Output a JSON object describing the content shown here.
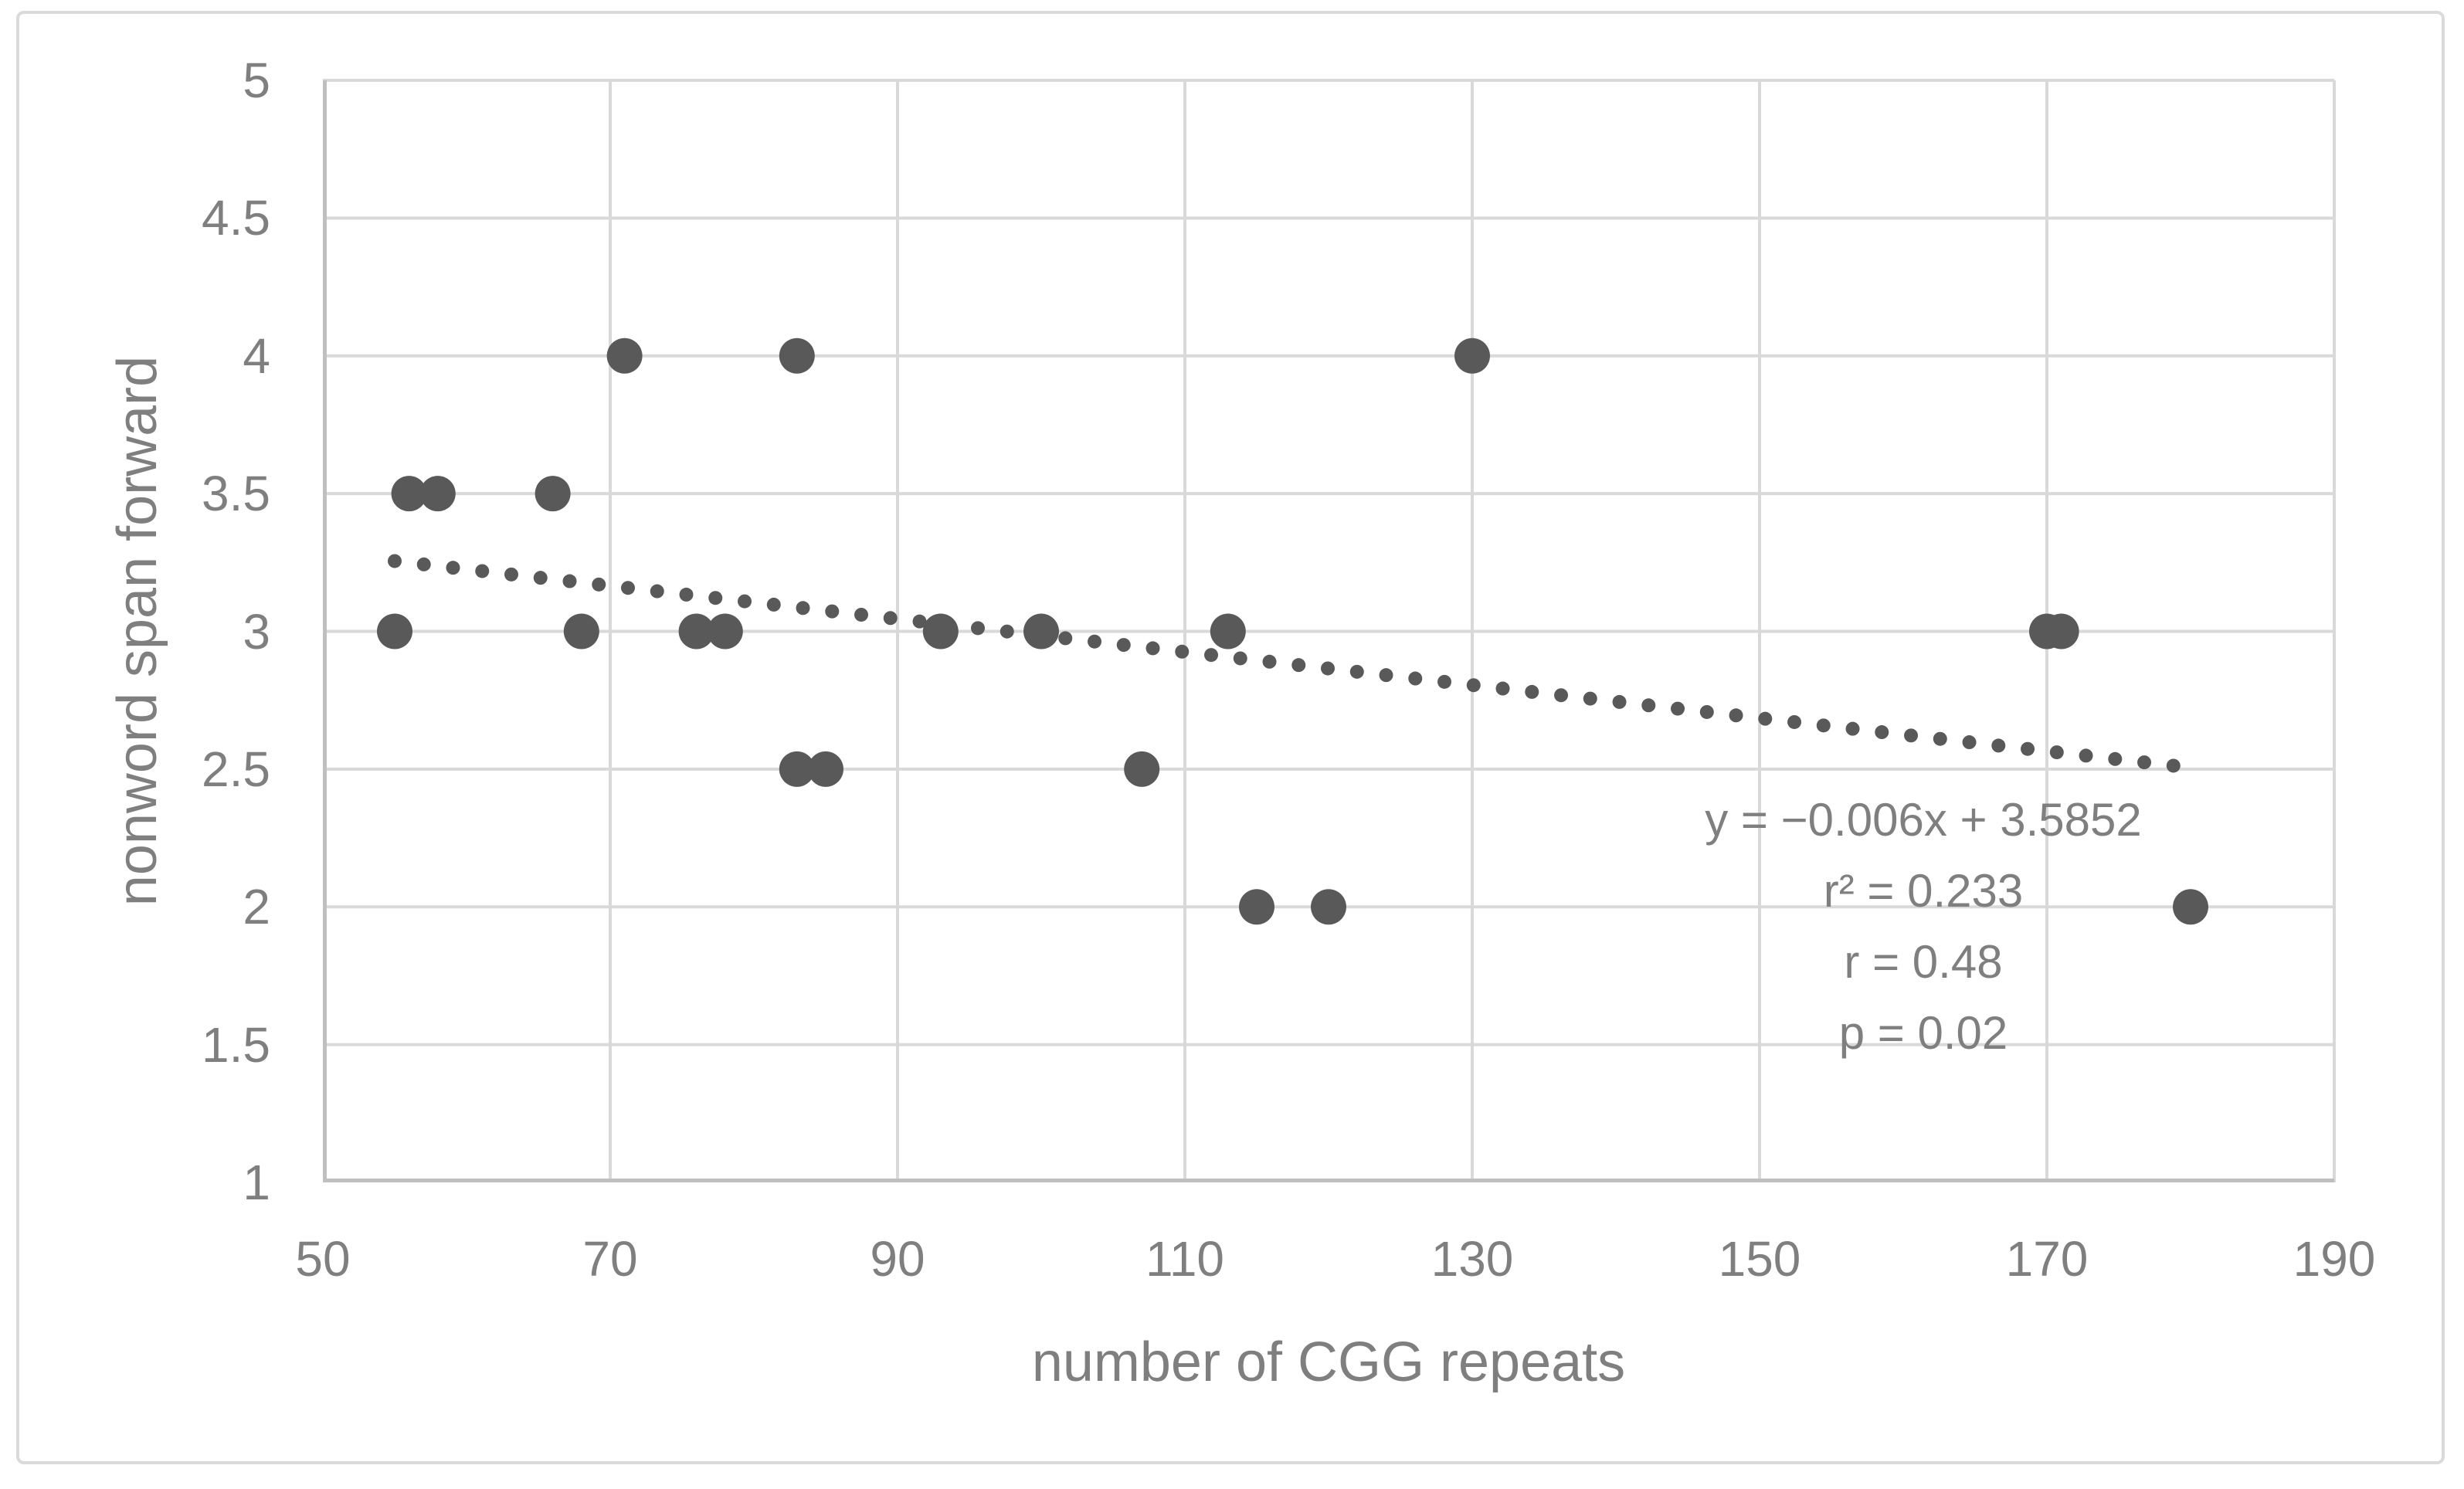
{
  "chart_data": {
    "type": "scatter",
    "title": "",
    "xlabel": "number of CGG repeats",
    "ylabel": "nonword span forward",
    "xlim": [
      50,
      190
    ],
    "ylim": [
      1,
      5
    ],
    "x_ticks": [
      50,
      70,
      90,
      110,
      130,
      150,
      170,
      190
    ],
    "y_ticks": [
      1,
      1.5,
      2,
      2.5,
      3,
      3.5,
      4,
      4.5,
      5
    ],
    "grid": true,
    "legend": false,
    "points": [
      [
        55,
        3
      ],
      [
        56,
        3.5
      ],
      [
        58,
        3.5
      ],
      [
        66,
        3.5
      ],
      [
        68,
        3
      ],
      [
        71,
        4
      ],
      [
        76,
        3
      ],
      [
        78,
        3
      ],
      [
        83,
        4
      ],
      [
        83,
        2.5
      ],
      [
        85,
        2.5
      ],
      [
        93,
        3
      ],
      [
        100,
        3
      ],
      [
        107,
        2.5
      ],
      [
        113,
        3
      ],
      [
        115,
        2
      ],
      [
        120,
        2
      ],
      [
        130,
        4
      ],
      [
        170,
        3
      ],
      [
        171,
        3
      ],
      [
        180,
        2
      ]
    ],
    "trendline": {
      "style": "dotted",
      "slope": -0.006,
      "intercept": 3.5852,
      "x_start": 55,
      "x_end": 180
    },
    "annotation": {
      "lines": [
        "y = −0.006x + 3.5852",
        "r² = 0.233",
        "r = 0.48",
        "p = 0.02"
      ]
    },
    "colors": {
      "point": "#595959",
      "trend": "#595959",
      "gridline": "#d9d9d9",
      "axis": "#bfbfbf",
      "text": "#7f7f7f",
      "frame": "#dadada"
    }
  }
}
